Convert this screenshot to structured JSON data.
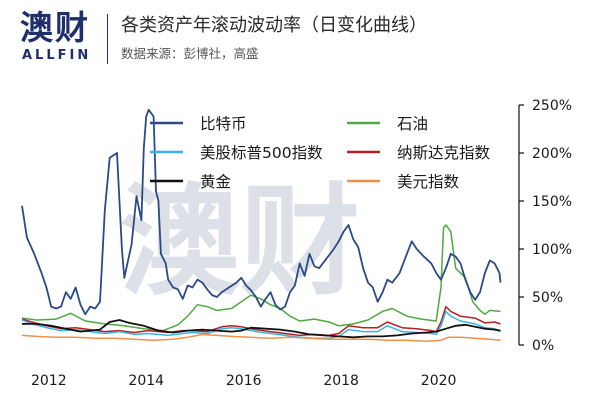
{
  "header": {
    "logo_cn": "澳财",
    "logo_en": "ALLFIN",
    "title": "各类资产年滚动波动率（日变化曲线）",
    "subtitle": "数据来源：彭博社，高盛"
  },
  "watermark": "澳财",
  "chart_data": {
    "type": "line",
    "title": "各类资产年滚动波动率（日变化曲线）",
    "xlabel": "",
    "ylabel": "",
    "x_ticks": [
      "2012",
      "2014",
      "2016",
      "2018",
      "2020"
    ],
    "y_ticks": [
      "0%",
      "50%",
      "100%",
      "150%",
      "200%",
      "250%"
    ],
    "xlim": [
      2011.5,
      2021.7
    ],
    "ylim": [
      0,
      250
    ],
    "grid": false,
    "legend": "top",
    "series": [
      {
        "name": "比特币",
        "color": "#2b4a86",
        "width": 1.8,
        "points": [
          [
            2011.5,
            145
          ],
          [
            2011.6,
            112
          ],
          [
            2011.75,
            95
          ],
          [
            2011.9,
            75
          ],
          [
            2012.0,
            60
          ],
          [
            2012.1,
            40
          ],
          [
            2012.2,
            38
          ],
          [
            2012.3,
            40
          ],
          [
            2012.4,
            55
          ],
          [
            2012.5,
            48
          ],
          [
            2012.6,
            60
          ],
          [
            2012.7,
            42
          ],
          [
            2012.8,
            32
          ],
          [
            2012.9,
            40
          ],
          [
            2013.0,
            38
          ],
          [
            2013.1,
            45
          ],
          [
            2013.2,
            140
          ],
          [
            2013.3,
            195
          ],
          [
            2013.45,
            200
          ],
          [
            2013.55,
            100
          ],
          [
            2013.6,
            70
          ],
          [
            2013.75,
            105
          ],
          [
            2013.85,
            155
          ],
          [
            2013.95,
            130
          ],
          [
            2014.0,
            205
          ],
          [
            2014.05,
            238
          ],
          [
            2014.1,
            245
          ],
          [
            2014.2,
            238
          ],
          [
            2014.25,
            160
          ],
          [
            2014.3,
            150
          ],
          [
            2014.35,
            95
          ],
          [
            2014.45,
            85
          ],
          [
            2014.5,
            68
          ],
          [
            2014.6,
            60
          ],
          [
            2014.7,
            58
          ],
          [
            2014.8,
            48
          ],
          [
            2014.9,
            62
          ],
          [
            2015.0,
            60
          ],
          [
            2015.1,
            68
          ],
          [
            2015.2,
            65
          ],
          [
            2015.3,
            58
          ],
          [
            2015.4,
            52
          ],
          [
            2015.5,
            50
          ],
          [
            2015.6,
            55
          ],
          [
            2015.75,
            60
          ],
          [
            2015.9,
            65
          ],
          [
            2016.0,
            70
          ],
          [
            2016.1,
            62
          ],
          [
            2016.2,
            57
          ],
          [
            2016.3,
            50
          ],
          [
            2016.4,
            40
          ],
          [
            2016.5,
            48
          ],
          [
            2016.6,
            55
          ],
          [
            2016.7,
            42
          ],
          [
            2016.8,
            37
          ],
          [
            2016.9,
            40
          ],
          [
            2017.0,
            55
          ],
          [
            2017.1,
            62
          ],
          [
            2017.2,
            85
          ],
          [
            2017.3,
            72
          ],
          [
            2017.4,
            95
          ],
          [
            2017.5,
            82
          ],
          [
            2017.6,
            80
          ],
          [
            2017.75,
            90
          ],
          [
            2017.9,
            100
          ],
          [
            2018.0,
            108
          ],
          [
            2018.1,
            118
          ],
          [
            2018.2,
            125
          ],
          [
            2018.3,
            110
          ],
          [
            2018.4,
            102
          ],
          [
            2018.5,
            80
          ],
          [
            2018.6,
            65
          ],
          [
            2018.7,
            60
          ],
          [
            2018.8,
            45
          ],
          [
            2018.9,
            55
          ],
          [
            2019.0,
            68
          ],
          [
            2019.1,
            65
          ],
          [
            2019.25,
            75
          ],
          [
            2019.4,
            95
          ],
          [
            2019.5,
            108
          ],
          [
            2019.6,
            100
          ],
          [
            2019.75,
            92
          ],
          [
            2019.9,
            85
          ],
          [
            2020.0,
            75
          ],
          [
            2020.1,
            68
          ],
          [
            2020.2,
            80
          ],
          [
            2020.3,
            95
          ],
          [
            2020.4,
            92
          ],
          [
            2020.5,
            85
          ],
          [
            2020.6,
            68
          ],
          [
            2020.7,
            55
          ],
          [
            2020.8,
            47
          ],
          [
            2020.9,
            55
          ],
          [
            2021.0,
            75
          ],
          [
            2021.1,
            88
          ],
          [
            2021.2,
            85
          ],
          [
            2021.3,
            75
          ],
          [
            2021.32,
            65
          ]
        ]
      },
      {
        "name": "石油",
        "color": "#4daa3e",
        "width": 1.5,
        "points": [
          [
            2011.5,
            28
          ],
          [
            2011.8,
            26
          ],
          [
            2012.2,
            27
          ],
          [
            2012.5,
            33
          ],
          [
            2012.8,
            25
          ],
          [
            2013.2,
            22
          ],
          [
            2013.6,
            20
          ],
          [
            2014.0,
            17
          ],
          [
            2014.4,
            15
          ],
          [
            2014.7,
            21
          ],
          [
            2014.9,
            30
          ],
          [
            2015.1,
            42
          ],
          [
            2015.3,
            40
          ],
          [
            2015.5,
            36
          ],
          [
            2015.8,
            38
          ],
          [
            2016.0,
            45
          ],
          [
            2016.2,
            52
          ],
          [
            2016.4,
            48
          ],
          [
            2016.6,
            42
          ],
          [
            2016.8,
            38
          ],
          [
            2017.0,
            30
          ],
          [
            2017.2,
            25
          ],
          [
            2017.5,
            27
          ],
          [
            2017.8,
            24
          ],
          [
            2018.0,
            20
          ],
          [
            2018.3,
            22
          ],
          [
            2018.6,
            26
          ],
          [
            2018.9,
            35
          ],
          [
            2019.1,
            38
          ],
          [
            2019.4,
            30
          ],
          [
            2019.7,
            27
          ],
          [
            2020.0,
            25
          ],
          [
            2020.1,
            60
          ],
          [
            2020.15,
            122
          ],
          [
            2020.2,
            125
          ],
          [
            2020.3,
            118
          ],
          [
            2020.4,
            80
          ],
          [
            2020.6,
            70
          ],
          [
            2020.75,
            45
          ],
          [
            2020.9,
            36
          ],
          [
            2021.0,
            32
          ],
          [
            2021.1,
            36
          ],
          [
            2021.32,
            35
          ]
        ]
      },
      {
        "name": "美股标普500指数",
        "color": "#3ab4e8",
        "width": 1.5,
        "points": [
          [
            2011.5,
            26
          ],
          [
            2011.7,
            22
          ],
          [
            2012.0,
            18
          ],
          [
            2012.3,
            15
          ],
          [
            2012.6,
            16
          ],
          [
            2012.9,
            14
          ],
          [
            2013.2,
            12
          ],
          [
            2013.5,
            14
          ],
          [
            2013.8,
            11
          ],
          [
            2014.1,
            12
          ],
          [
            2014.5,
            10
          ],
          [
            2014.8,
            12
          ],
          [
            2015.0,
            13
          ],
          [
            2015.3,
            12
          ],
          [
            2015.6,
            17
          ],
          [
            2015.8,
            18
          ],
          [
            2016.0,
            17
          ],
          [
            2016.3,
            14
          ],
          [
            2016.6,
            12
          ],
          [
            2016.9,
            10
          ],
          [
            2017.2,
            8
          ],
          [
            2017.5,
            7
          ],
          [
            2017.8,
            7
          ],
          [
            2018.0,
            9
          ],
          [
            2018.2,
            16
          ],
          [
            2018.5,
            14
          ],
          [
            2018.8,
            14
          ],
          [
            2019.0,
            20
          ],
          [
            2019.3,
            14
          ],
          [
            2019.6,
            13
          ],
          [
            2019.9,
            12
          ],
          [
            2020.0,
            11
          ],
          [
            2020.1,
            20
          ],
          [
            2020.2,
            35
          ],
          [
            2020.3,
            30
          ],
          [
            2020.5,
            25
          ],
          [
            2020.8,
            22
          ],
          [
            2021.0,
            18
          ],
          [
            2021.2,
            17
          ],
          [
            2021.32,
            14
          ]
        ]
      },
      {
        "name": "纳斯达克指数",
        "color": "#b22222",
        "width": 1.5,
        "points": [
          [
            2011.5,
            27
          ],
          [
            2011.7,
            24
          ],
          [
            2012.0,
            20
          ],
          [
            2012.3,
            17
          ],
          [
            2012.6,
            18
          ],
          [
            2012.9,
            16
          ],
          [
            2013.2,
            14
          ],
          [
            2013.5,
            15
          ],
          [
            2013.8,
            13
          ],
          [
            2014.1,
            15
          ],
          [
            2014.5,
            13
          ],
          [
            2014.8,
            15
          ],
          [
            2015.0,
            15
          ],
          [
            2015.3,
            14
          ],
          [
            2015.6,
            19
          ],
          [
            2015.8,
            20
          ],
          [
            2016.0,
            19
          ],
          [
            2016.3,
            16
          ],
          [
            2016.6,
            14
          ],
          [
            2016.9,
            12
          ],
          [
            2017.2,
            10
          ],
          [
            2017.5,
            11
          ],
          [
            2017.8,
            10
          ],
          [
            2018.0,
            12
          ],
          [
            2018.2,
            20
          ],
          [
            2018.5,
            18
          ],
          [
            2018.8,
            18
          ],
          [
            2019.0,
            24
          ],
          [
            2019.3,
            18
          ],
          [
            2019.6,
            17
          ],
          [
            2019.9,
            15
          ],
          [
            2020.0,
            14
          ],
          [
            2020.1,
            24
          ],
          [
            2020.2,
            40
          ],
          [
            2020.3,
            35
          ],
          [
            2020.5,
            30
          ],
          [
            2020.8,
            28
          ],
          [
            2021.0,
            23
          ],
          [
            2021.2,
            24
          ],
          [
            2021.32,
            22
          ]
        ]
      },
      {
        "name": "黄金",
        "color": "#111111",
        "width": 1.8,
        "points": [
          [
            2011.5,
            22
          ],
          [
            2011.8,
            22
          ],
          [
            2012.1,
            20
          ],
          [
            2012.4,
            17
          ],
          [
            2012.7,
            14
          ],
          [
            2012.9,
            15
          ],
          [
            2013.1,
            16
          ],
          [
            2013.3,
            24
          ],
          [
            2013.5,
            26
          ],
          [
            2013.7,
            23
          ],
          [
            2014.0,
            20
          ],
          [
            2014.3,
            15
          ],
          [
            2014.6,
            13
          ],
          [
            2014.9,
            15
          ],
          [
            2015.2,
            16
          ],
          [
            2015.5,
            15
          ],
          [
            2015.8,
            14
          ],
          [
            2016.0,
            15
          ],
          [
            2016.2,
            18
          ],
          [
            2016.5,
            17
          ],
          [
            2016.8,
            16
          ],
          [
            2017.1,
            14
          ],
          [
            2017.4,
            11
          ],
          [
            2017.7,
            10
          ],
          [
            2018.0,
            9
          ],
          [
            2018.3,
            8
          ],
          [
            2018.6,
            9
          ],
          [
            2018.9,
            9
          ],
          [
            2019.2,
            10
          ],
          [
            2019.5,
            12
          ],
          [
            2019.8,
            13
          ],
          [
            2020.0,
            14
          ],
          [
            2020.2,
            17
          ],
          [
            2020.4,
            20
          ],
          [
            2020.6,
            21
          ],
          [
            2020.8,
            19
          ],
          [
            2021.0,
            17
          ],
          [
            2021.2,
            16
          ],
          [
            2021.32,
            15
          ]
        ]
      },
      {
        "name": "美元指数",
        "color": "#f0904a",
        "width": 1.5,
        "points": [
          [
            2011.5,
            10
          ],
          [
            2011.8,
            9
          ],
          [
            2012.2,
            8
          ],
          [
            2012.6,
            8
          ],
          [
            2013.0,
            7
          ],
          [
            2013.4,
            7
          ],
          [
            2013.8,
            6
          ],
          [
            2014.2,
            5
          ],
          [
            2014.6,
            6
          ],
          [
            2014.9,
            8
          ],
          [
            2015.2,
            11
          ],
          [
            2015.5,
            10
          ],
          [
            2015.8,
            9
          ],
          [
            2016.2,
            8
          ],
          [
            2016.6,
            7
          ],
          [
            2017.0,
            8
          ],
          [
            2017.4,
            7
          ],
          [
            2017.8,
            6
          ],
          [
            2018.2,
            6
          ],
          [
            2018.6,
            6
          ],
          [
            2019.0,
            5
          ],
          [
            2019.4,
            5
          ],
          [
            2019.8,
            4
          ],
          [
            2020.1,
            5
          ],
          [
            2020.25,
            8
          ],
          [
            2020.5,
            8
          ],
          [
            2020.8,
            7
          ],
          [
            2021.1,
            6
          ],
          [
            2021.32,
            5
          ]
        ]
      }
    ]
  }
}
